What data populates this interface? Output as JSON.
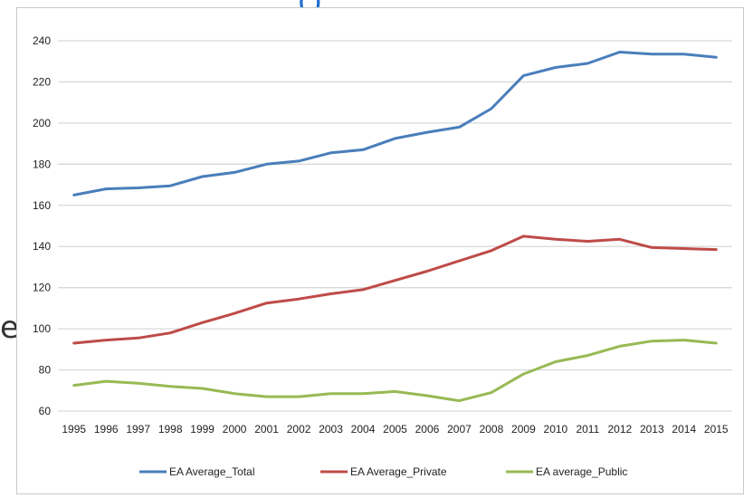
{
  "page": {
    "top_fragment": "(      )",
    "left_fragment": "e"
  },
  "chart_data": {
    "type": "line",
    "title": "",
    "xlabel": "",
    "ylabel": "",
    "ylim": [
      60,
      240
    ],
    "yticks": [
      60,
      80,
      100,
      120,
      140,
      160,
      180,
      200,
      220,
      240
    ],
    "grid": true,
    "legend_position": "bottom",
    "x": [
      "1995",
      "1996",
      "1997",
      "1998",
      "1999",
      "2000",
      "2001",
      "2002",
      "2003",
      "2004",
      "2005",
      "2006",
      "2007",
      "2008",
      "2009",
      "2010",
      "2011",
      "2012",
      "2013",
      "2014",
      "2015"
    ],
    "series": [
      {
        "name": "EA Average_Total",
        "color": "#4a7ebb",
        "values": [
          165,
          168,
          168.5,
          169.5,
          174,
          176,
          180,
          181.5,
          185.5,
          187,
          192.5,
          195.5,
          198,
          207,
          223,
          227,
          229,
          234.5,
          233.5,
          233.5,
          232
        ]
      },
      {
        "name": "EA Average_Private",
        "color": "#be4b48",
        "values": [
          93,
          94.5,
          95.5,
          98,
          103,
          107.5,
          112.5,
          114.5,
          117,
          119,
          123.5,
          128,
          133,
          138,
          145,
          143.5,
          142.5,
          143.5,
          139.5,
          139,
          138.5
        ]
      },
      {
        "name": "EA average_Public",
        "color": "#98b954",
        "values": [
          72.5,
          74.5,
          73.5,
          72,
          71,
          68.5,
          67,
          67,
          68.5,
          68.5,
          69.5,
          67.5,
          65,
          69,
          78,
          84,
          87,
          91.5,
          94,
          94.5,
          93
        ]
      }
    ]
  }
}
